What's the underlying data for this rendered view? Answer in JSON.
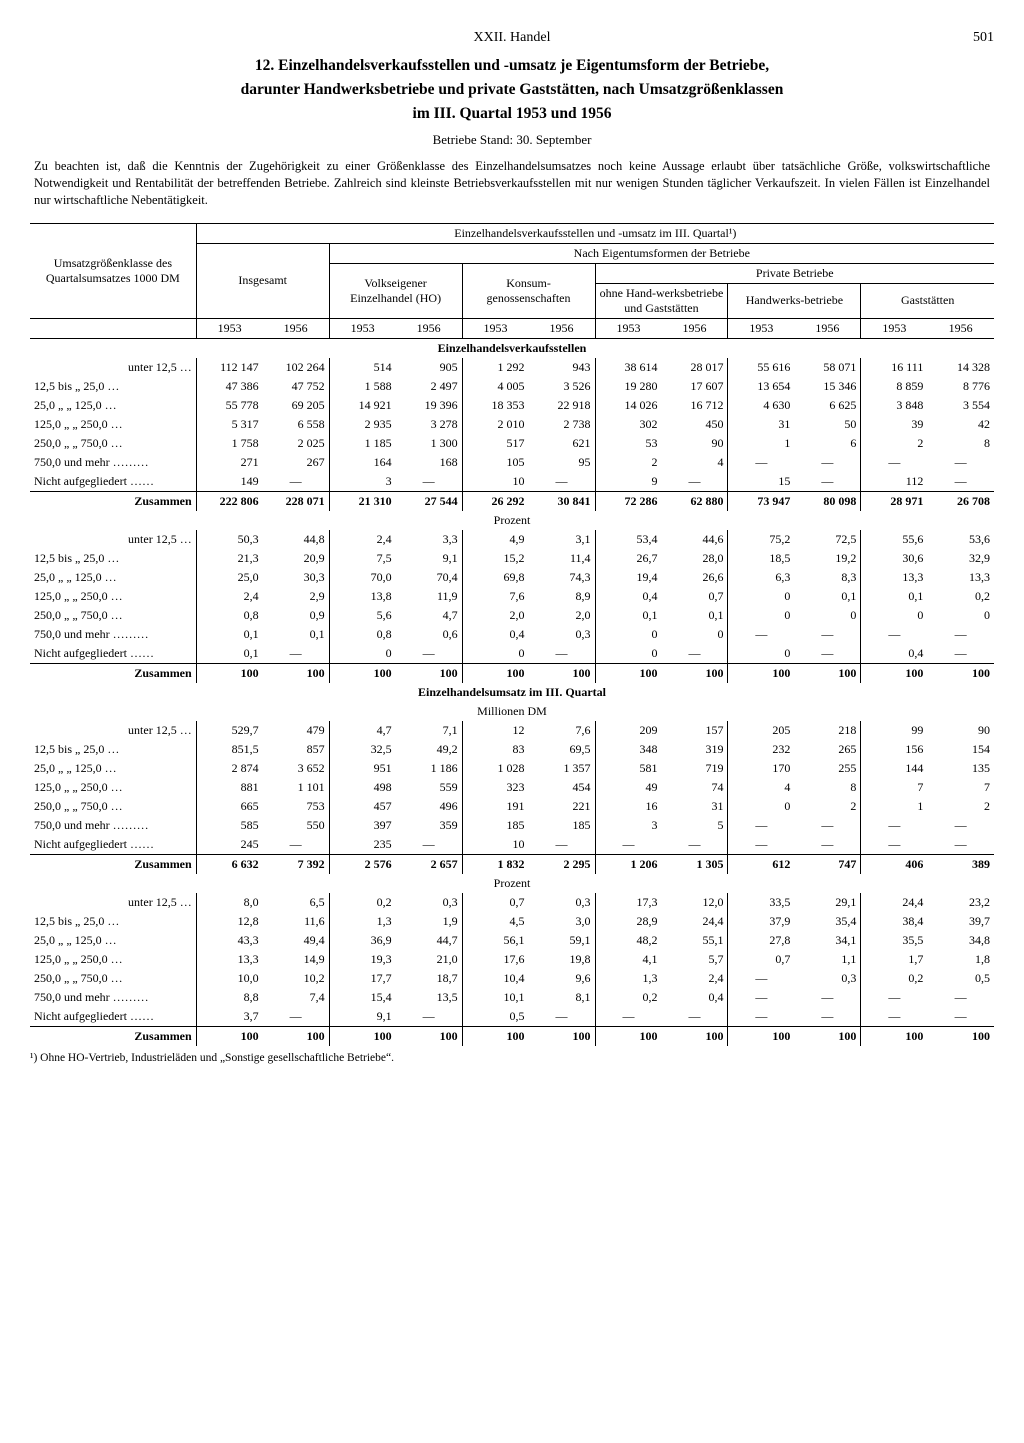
{
  "header": {
    "chapter": "XXII. Handel",
    "page": "501"
  },
  "title_lines": [
    "12. Einzelhandelsverkaufsstellen und -umsatz je Eigentumsform der Betriebe,",
    "darunter Handwerksbetriebe und private Gaststätten, nach Umsatzgrößenklassen",
    "im III. Quartal 1953 und 1956"
  ],
  "subtitle": "Betriebe Stand: 30. September",
  "note": "Zu beachten ist, daß die Kenntnis der Zugehörigkeit zu einer Größenklasse des Einzelhandelsumsatzes noch keine Aussage erlaubt über tatsächliche Größe, volkswirtschaftliche Notwendigkeit und Rentabilität der betreffenden Betriebe. Zahlreich sind kleinste Betriebsverkaufsstellen mit nur wenigen Stunden täglicher Verkaufszeit. In vielen Fällen ist Einzelhandel nur wirtschaftliche Nebentätigkeit.",
  "col_headers": {
    "rowhead": "Umsatzgrößenklasse des Quartalsumsatzes 1000 DM",
    "super": "Einzelhandelsverkaufsstellen und -umsatz im III. Quartal¹)",
    "insgesamt": "Insgesamt",
    "nach": "Nach Eigentumsformen der Betriebe",
    "ho": "Volkseigener Einzelhandel (HO)",
    "konsum": "Konsum-genossenschaften",
    "private": "Private Betriebe",
    "priv1": "ohne Hand-werksbetriebe und Gaststätten",
    "priv2": "Handwerks-betriebe",
    "priv3": "Gaststätten",
    "y1953": "1953",
    "y1956": "1956"
  },
  "row_labels": [
    "unter   12,5 …",
    "12,5 bis   „    25,0 …",
    "25,0   „    „   125,0 …",
    "125,0   „    „   250,0 …",
    "250,0   „    „   750,0 …",
    "750,0 und mehr ………",
    "Nicht aufgegliedert ……",
    "Zusammen"
  ],
  "sections": [
    {
      "title": "Einzelhandelsverkaufsstellen",
      "sub": "",
      "rows": [
        [
          "112 147",
          "102 264",
          "514",
          "905",
          "1 292",
          "943",
          "38 614",
          "28 017",
          "55 616",
          "58 071",
          "16 111",
          "14 328"
        ],
        [
          "47 386",
          "47 752",
          "1 588",
          "2 497",
          "4 005",
          "3 526",
          "19 280",
          "17 607",
          "13 654",
          "15 346",
          "8 859",
          "8 776"
        ],
        [
          "55 778",
          "69 205",
          "14 921",
          "19 396",
          "18 353",
          "22 918",
          "14 026",
          "16 712",
          "4 630",
          "6 625",
          "3 848",
          "3 554"
        ],
        [
          "5 317",
          "6 558",
          "2 935",
          "3 278",
          "2 010",
          "2 738",
          "302",
          "450",
          "31",
          "50",
          "39",
          "42"
        ],
        [
          "1 758",
          "2 025",
          "1 185",
          "1 300",
          "517",
          "621",
          "53",
          "90",
          "1",
          "6",
          "2",
          "8"
        ],
        [
          "271",
          "267",
          "164",
          "168",
          "105",
          "95",
          "2",
          "4",
          "—",
          "—",
          "—",
          "—"
        ],
        [
          "149",
          "—",
          "3",
          "—",
          "10",
          "—",
          "9",
          "—",
          "15",
          "—",
          "112",
          "—"
        ],
        [
          "222 806",
          "228 071",
          "21 310",
          "27 544",
          "26 292",
          "30 841",
          "72 286",
          "62 880",
          "73 947",
          "80 098",
          "28 971",
          "26 708"
        ]
      ]
    },
    {
      "title": "",
      "sub": "Prozent",
      "rows": [
        [
          "50,3",
          "44,8",
          "2,4",
          "3,3",
          "4,9",
          "3,1",
          "53,4",
          "44,6",
          "75,2",
          "72,5",
          "55,6",
          "53,6"
        ],
        [
          "21,3",
          "20,9",
          "7,5",
          "9,1",
          "15,2",
          "11,4",
          "26,7",
          "28,0",
          "18,5",
          "19,2",
          "30,6",
          "32,9"
        ],
        [
          "25,0",
          "30,3",
          "70,0",
          "70,4",
          "69,8",
          "74,3",
          "19,4",
          "26,6",
          "6,3",
          "8,3",
          "13,3",
          "13,3"
        ],
        [
          "2,4",
          "2,9",
          "13,8",
          "11,9",
          "7,6",
          "8,9",
          "0,4",
          "0,7",
          "0",
          "0,1",
          "0,1",
          "0,2"
        ],
        [
          "0,8",
          "0,9",
          "5,6",
          "4,7",
          "2,0",
          "2,0",
          "0,1",
          "0,1",
          "0",
          "0",
          "0",
          "0"
        ],
        [
          "0,1",
          "0,1",
          "0,8",
          "0,6",
          "0,4",
          "0,3",
          "0",
          "0",
          "—",
          "—",
          "—",
          "—"
        ],
        [
          "0,1",
          "—",
          "0",
          "—",
          "0",
          "—",
          "0",
          "—",
          "0",
          "—",
          "0,4",
          "—"
        ],
        [
          "100",
          "100",
          "100",
          "100",
          "100",
          "100",
          "100",
          "100",
          "100",
          "100",
          "100",
          "100"
        ]
      ]
    },
    {
      "title": "Einzelhandelsumsatz im III. Quartal",
      "sub": "Millionen DM",
      "rows": [
        [
          "529,7",
          "479",
          "4,7",
          "7,1",
          "12",
          "7,6",
          "209",
          "157",
          "205",
          "218",
          "99",
          "90"
        ],
        [
          "851,5",
          "857",
          "32,5",
          "49,2",
          "83",
          "69,5",
          "348",
          "319",
          "232",
          "265",
          "156",
          "154"
        ],
        [
          "2 874",
          "3 652",
          "951",
          "1 186",
          "1 028",
          "1 357",
          "581",
          "719",
          "170",
          "255",
          "144",
          "135"
        ],
        [
          "881",
          "1 101",
          "498",
          "559",
          "323",
          "454",
          "49",
          "74",
          "4",
          "8",
          "7",
          "7"
        ],
        [
          "665",
          "753",
          "457",
          "496",
          "191",
          "221",
          "16",
          "31",
          "0",
          "2",
          "1",
          "2"
        ],
        [
          "585",
          "550",
          "397",
          "359",
          "185",
          "185",
          "3",
          "5",
          "—",
          "—",
          "—",
          "—"
        ],
        [
          "245",
          "—",
          "235",
          "—",
          "10",
          "—",
          "—",
          "—",
          "—",
          "—",
          "—",
          "—"
        ],
        [
          "6 632",
          "7 392",
          "2 576",
          "2 657",
          "1 832",
          "2 295",
          "1 206",
          "1 305",
          "612",
          "747",
          "406",
          "389"
        ]
      ]
    },
    {
      "title": "",
      "sub": "Prozent",
      "rows": [
        [
          "8,0",
          "6,5",
          "0,2",
          "0,3",
          "0,7",
          "0,3",
          "17,3",
          "12,0",
          "33,5",
          "29,1",
          "24,4",
          "23,2"
        ],
        [
          "12,8",
          "11,6",
          "1,3",
          "1,9",
          "4,5",
          "3,0",
          "28,9",
          "24,4",
          "37,9",
          "35,4",
          "38,4",
          "39,7"
        ],
        [
          "43,3",
          "49,4",
          "36,9",
          "44,7",
          "56,1",
          "59,1",
          "48,2",
          "55,1",
          "27,8",
          "34,1",
          "35,5",
          "34,8"
        ],
        [
          "13,3",
          "14,9",
          "19,3",
          "21,0",
          "17,6",
          "19,8",
          "4,1",
          "5,7",
          "0,7",
          "1,1",
          "1,7",
          "1,8"
        ],
        [
          "10,0",
          "10,2",
          "17,7",
          "18,7",
          "10,4",
          "9,6",
          "1,3",
          "2,4",
          "—",
          "0,3",
          "0,2",
          "0,5"
        ],
        [
          "8,8",
          "7,4",
          "15,4",
          "13,5",
          "10,1",
          "8,1",
          "0,2",
          "0,4",
          "—",
          "—",
          "—",
          "—"
        ],
        [
          "3,7",
          "—",
          "9,1",
          "—",
          "0,5",
          "—",
          "—",
          "—",
          "—",
          "—",
          "—",
          "—"
        ],
        [
          "100",
          "100",
          "100",
          "100",
          "100",
          "100",
          "100",
          "100",
          "100",
          "100",
          "100",
          "100"
        ]
      ]
    }
  ],
  "footnote": "¹) Ohne HO-Vertrieb, Industrieläden und „Sonstige gesellschaftliche Betriebe“."
}
